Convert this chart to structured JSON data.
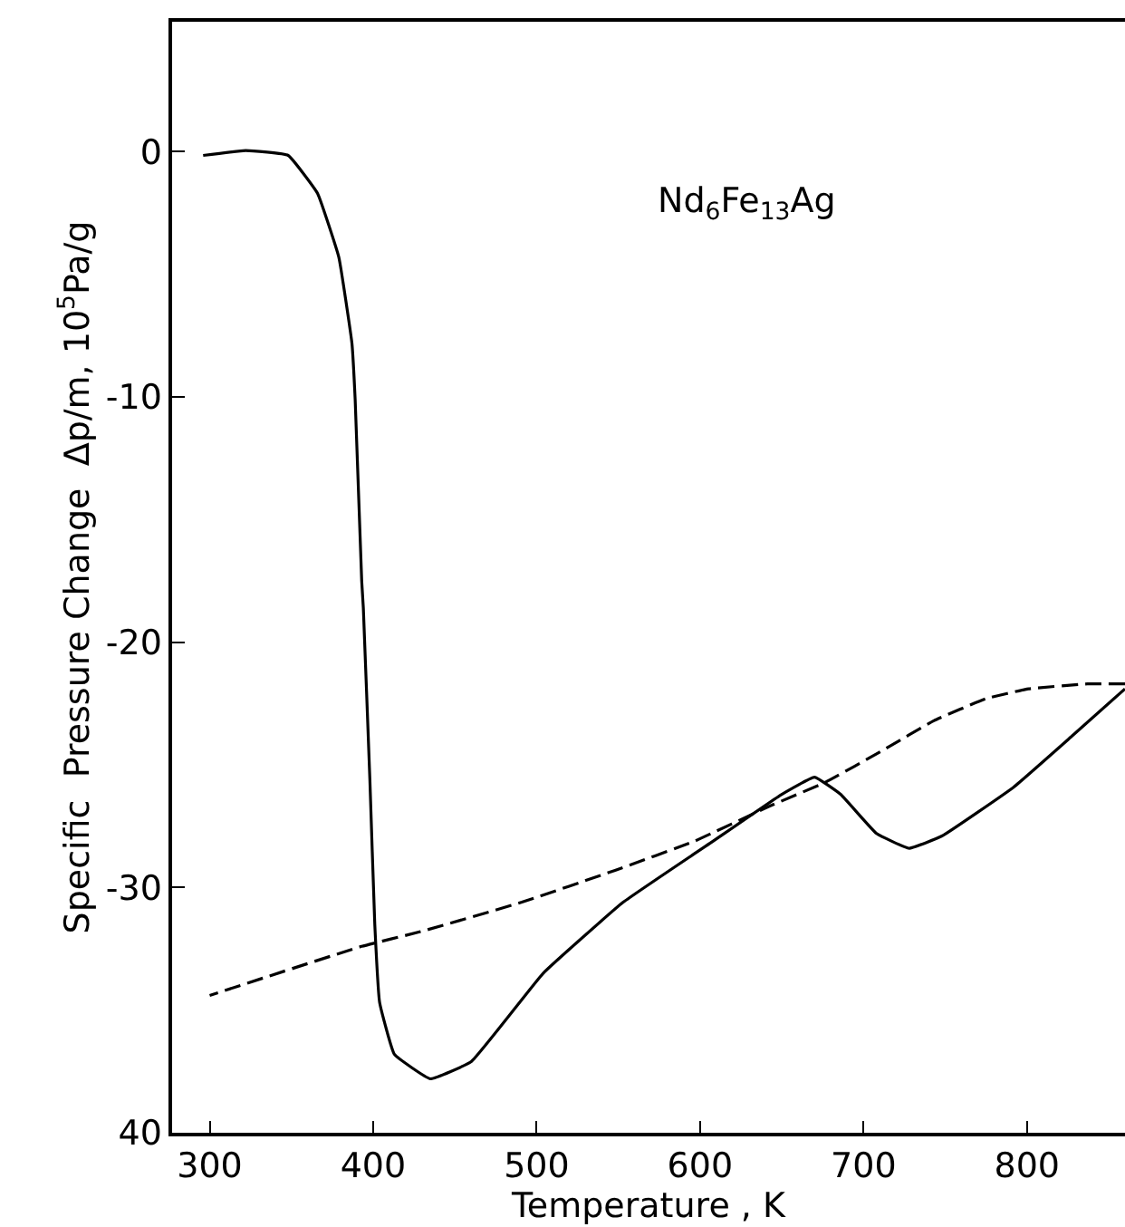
{
  "chart_data": {
    "type": "line",
    "xlabel": "Temperature , K",
    "ylabel": "Specific  Pressure Change  Δp/m, 10$^{5}$Pa/g",
    "annotations": [
      "Nd$_{6}$Fe$_{13}$Ag"
    ],
    "xlim": [
      277,
      860
    ],
    "xticks": [
      300,
      400,
      500,
      600,
      700,
      800
    ],
    "ylim": [
      -40,
      5.3
    ],
    "yticks": [
      0,
      -10,
      -20,
      -30,
      {
        "value": -40,
        "label": "40"
      }
    ],
    "series": [
      {
        "color": "#000000",
        "line_style": "solid",
        "x": [
          296,
          322,
          348,
          366,
          379,
          387,
          389,
          393,
          394,
          398,
          401,
          404,
          413,
          435,
          460,
          504,
          553,
          606,
          650,
          670,
          686,
          708,
          728,
          748,
          792,
          828,
          860
        ],
        "values": [
          -0.15,
          0.05,
          -0.15,
          -1.7,
          -4.3,
          -7.8,
          -10.1,
          -17.5,
          -18.6,
          -25.6,
          -31.5,
          -34.7,
          -36.8,
          -37.8,
          -37.1,
          -33.5,
          -30.6,
          -28.2,
          -26.2,
          -25.5,
          -26.2,
          -27.8,
          -28.4,
          -27.9,
          -25.9,
          -23.8,
          -21.9
        ]
      },
      {
        "color": "#000000",
        "line_style": "dashed",
        "x": [
          860,
          837,
          801,
          775,
          743,
          712,
          677,
          642,
          597,
          548,
          491,
          429,
          393,
          300
        ],
        "values": [
          -21.7,
          -21.7,
          -21.9,
          -22.3,
          -23.2,
          -24.4,
          -25.7,
          -26.7,
          -28.1,
          -29.3,
          -30.6,
          -31.8,
          -32.4,
          -34.4
        ]
      }
    ]
  }
}
